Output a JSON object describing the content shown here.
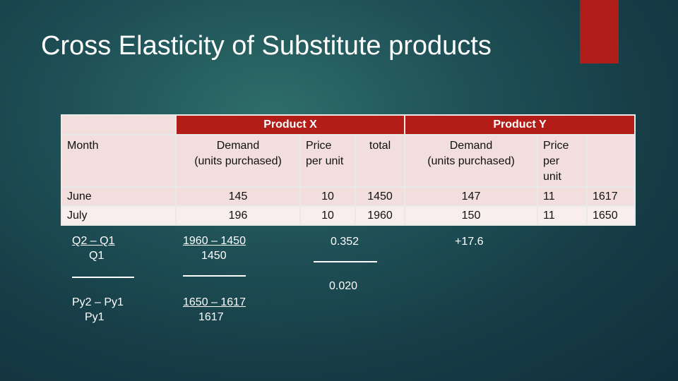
{
  "title": "Cross Elasticity of Substitute products",
  "colors": {
    "accent": "#b01e1a",
    "header": "#b21d18",
    "cell": "#f1dedd",
    "cell_alt": "#f8eeee"
  },
  "table": {
    "group_headers": {
      "product_x": "Product X",
      "product_y": "Product Y"
    },
    "columns": {
      "month": "Month",
      "x_demand_1": "Demand",
      "x_demand_2": "(units purchased)",
      "x_price_1": "Price",
      "x_price_2": "per unit",
      "x_total": "total",
      "y_demand_1": "Demand",
      "y_demand_2": "(units purchased)",
      "y_price_1": "Price",
      "y_price_2": "per",
      "y_price_3": "unit"
    },
    "rows": [
      {
        "month": "June",
        "x_demand": "145",
        "x_price": "10",
        "x_total": "1450",
        "y_demand": "147",
        "y_price": "11",
        "y_total": "1617"
      },
      {
        "month": "July",
        "x_demand": "196",
        "x_price": "10",
        "x_total": "1960",
        "y_demand": "150",
        "y_price": "11",
        "y_total": "1650"
      }
    ]
  },
  "calc": {
    "q_numerator": "Q2 – Q1",
    "q_denominator": "Q1",
    "q_values_numerator": "1960 – 1450",
    "q_values_denominator": "1450",
    "result_top": "0.352",
    "result_bottom": "0.020",
    "result_final": "+17.6",
    "p_numerator": "Py2 – Py1",
    "p_denominator": "Py1",
    "p_values_numerator": "1650 – 1617",
    "p_values_denominator": "1617"
  }
}
